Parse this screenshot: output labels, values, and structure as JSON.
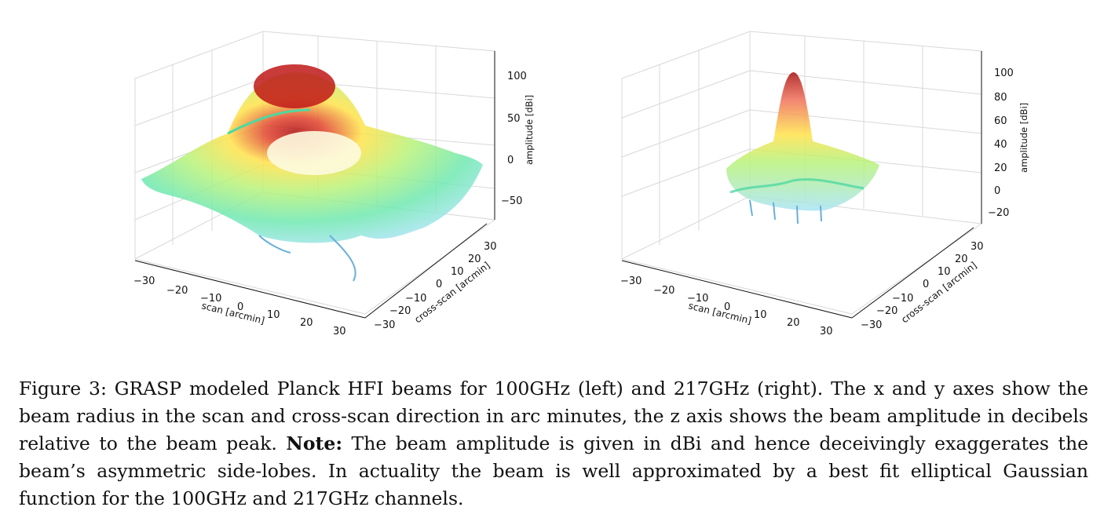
{
  "figures": [
    {
      "id": "left",
      "z_ticks": [
        "100",
        "50",
        "0",
        "−50"
      ],
      "x_ticks": [
        "−30",
        "−20",
        "−10",
        "0",
        "10",
        "20",
        "30"
      ],
      "y_ticks": [
        "30",
        "20",
        "10",
        "0",
        "−10",
        "−20",
        "−30"
      ],
      "x_label": "scan [arcmin]",
      "y_label": "cross-scan [arcmin]",
      "z_label": "amplitude [dBi]"
    },
    {
      "id": "right",
      "z_ticks": [
        "100",
        "80",
        "60",
        "40",
        "20",
        "0",
        "−20"
      ],
      "x_ticks": [
        "−30",
        "−20",
        "−10",
        "0",
        "10",
        "20",
        "30"
      ],
      "y_ticks": [
        "30",
        "20",
        "10",
        "0",
        "−10",
        "−20",
        "−30"
      ],
      "x_label": "scan [arcmin]",
      "y_label": "cross-scan [arcmin]",
      "z_label": "amplitude [dBi]"
    }
  ],
  "caption": {
    "part1": "Figure 3: GRASP modeled Planck HFI beams for 100GHz (left) and 217GHz (right). The x and y axes show the beam radius in the scan and cross-scan direction in arc minutes, the z axis shows the beam amplitude in decibels relative to the beam peak.",
    "note_label": "Note:",
    "part2": "The beam amplitude is given in dBi and hence deceivingly exaggerates the beam’s asymmetric side-lobes. In actuality the beam is well approximated by a best fit elliptical Gaussian function for the 100GHz and 217GHz channels."
  }
}
